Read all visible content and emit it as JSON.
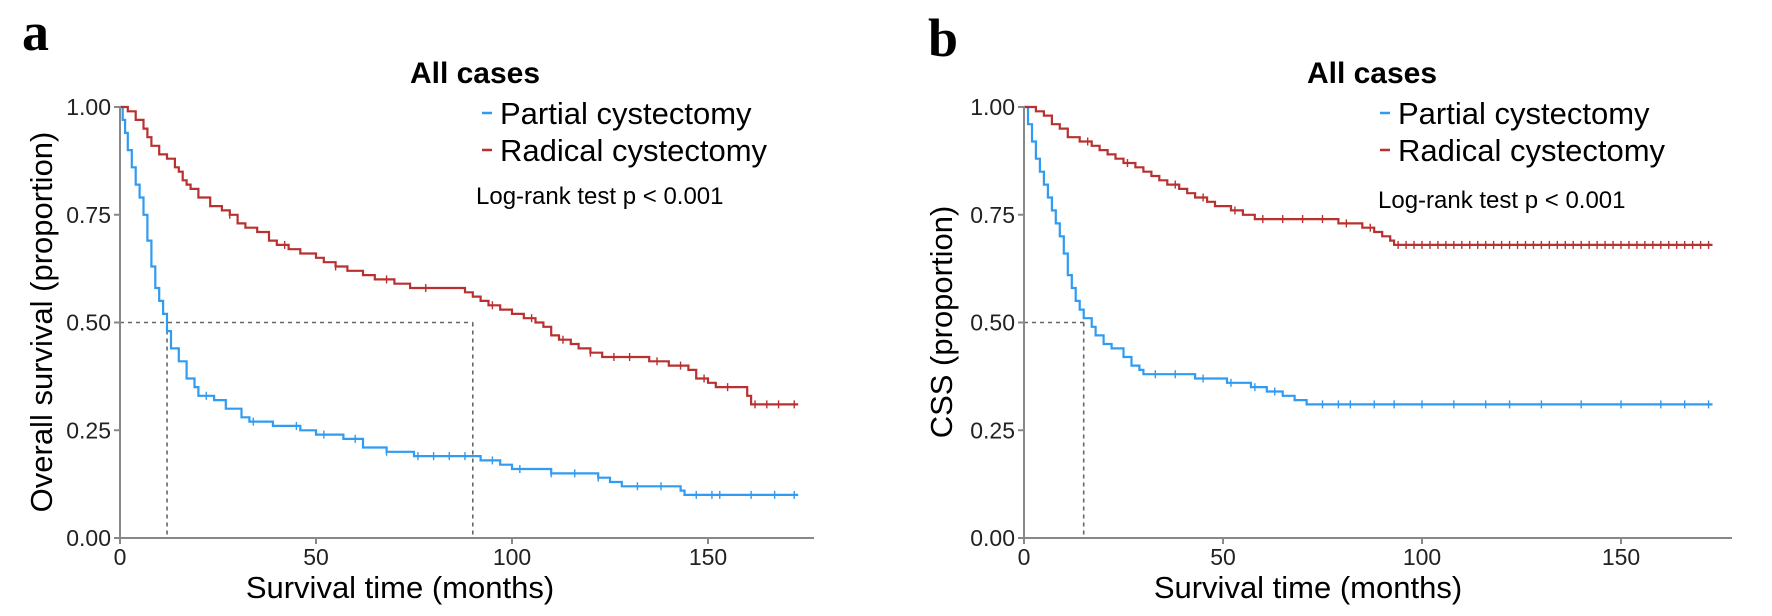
{
  "colors": {
    "partial": "#2f9bf2",
    "radical": "#b8302f"
  },
  "chart_data": [
    {
      "type": "line",
      "panel": "a",
      "title": "All cases",
      "xlabel": "Survival time (months)",
      "ylabel": "Overall survival (proportion)",
      "xlim": [
        0,
        180
      ],
      "ylim": [
        0,
        1
      ],
      "xticks": [
        "0",
        "50",
        "100",
        "150"
      ],
      "yticks": [
        "0.00",
        "0.25",
        "0.50",
        "0.75",
        "1.00"
      ],
      "annotation": "Log-rank test  p < 0.001",
      "legend_position": "top-right",
      "median_lines": [
        12,
        90
      ],
      "series": [
        {
          "name": "Partial cystectomy",
          "color_key": "partial",
          "points": [
            [
              0,
              1.0
            ],
            [
              0.7,
              0.97
            ],
            [
              1.3,
              0.94
            ],
            [
              2,
              0.9
            ],
            [
              3,
              0.86
            ],
            [
              4,
              0.82
            ],
            [
              5,
              0.79
            ],
            [
              6,
              0.75
            ],
            [
              7,
              0.69
            ],
            [
              8,
              0.63
            ],
            [
              9,
              0.58
            ],
            [
              10,
              0.55
            ],
            [
              11,
              0.52
            ],
            [
              12,
              0.48
            ],
            [
              13,
              0.44
            ],
            [
              15,
              0.41
            ],
            [
              17,
              0.37
            ],
            [
              19,
              0.35
            ],
            [
              20,
              0.33
            ],
            [
              24,
              0.32
            ],
            [
              27,
              0.3
            ],
            [
              31,
              0.28
            ],
            [
              33,
              0.27
            ],
            [
              39,
              0.26
            ],
            [
              46,
              0.25
            ],
            [
              50,
              0.24
            ],
            [
              57,
              0.23
            ],
            [
              62,
              0.21
            ],
            [
              68,
              0.2
            ],
            [
              75,
              0.19
            ],
            [
              92,
              0.18
            ],
            [
              97,
              0.17
            ],
            [
              100,
              0.16
            ],
            [
              110,
              0.15
            ],
            [
              122,
              0.14
            ],
            [
              125,
              0.13
            ],
            [
              128,
              0.12
            ],
            [
              143,
              0.11
            ],
            [
              144,
              0.1
            ],
            [
              173,
              0.1
            ]
          ],
          "censors": [
            22,
            34,
            45,
            52,
            60,
            68,
            76,
            80,
            84,
            88,
            95,
            102,
            110,
            116,
            122,
            132,
            138,
            147,
            151,
            153,
            161,
            167,
            172
          ]
        },
        {
          "name": "Radical cystectomy",
          "color_key": "radical",
          "points": [
            [
              0,
              1.0
            ],
            [
              2,
              0.99
            ],
            [
              4,
              0.97
            ],
            [
              6,
              0.95
            ],
            [
              7,
              0.93
            ],
            [
              8,
              0.91
            ],
            [
              10,
              0.89
            ],
            [
              12,
              0.88
            ],
            [
              14,
              0.86
            ],
            [
              15,
              0.85
            ],
            [
              16,
              0.83
            ],
            [
              17,
              0.82
            ],
            [
              18,
              0.81
            ],
            [
              20,
              0.79
            ],
            [
              23,
              0.77
            ],
            [
              26,
              0.76
            ],
            [
              28,
              0.75
            ],
            [
              30,
              0.73
            ],
            [
              32,
              0.72
            ],
            [
              35,
              0.71
            ],
            [
              38,
              0.69
            ],
            [
              40,
              0.68
            ],
            [
              43,
              0.67
            ],
            [
              46,
              0.66
            ],
            [
              50,
              0.65
            ],
            [
              52,
              0.64
            ],
            [
              55,
              0.63
            ],
            [
              58,
              0.62
            ],
            [
              62,
              0.61
            ],
            [
              65,
              0.6
            ],
            [
              70,
              0.59
            ],
            [
              74,
              0.58
            ],
            [
              86,
              0.58
            ],
            [
              88,
              0.57
            ],
            [
              90,
              0.56
            ],
            [
              92,
              0.55
            ],
            [
              94,
              0.54
            ],
            [
              97,
              0.53
            ],
            [
              100,
              0.52
            ],
            [
              103,
              0.51
            ],
            [
              106,
              0.5
            ],
            [
              108,
              0.49
            ],
            [
              110,
              0.47
            ],
            [
              112,
              0.46
            ],
            [
              115,
              0.45
            ],
            [
              117,
              0.44
            ],
            [
              120,
              0.43
            ],
            [
              123,
              0.42
            ],
            [
              133,
              0.42
            ],
            [
              135,
              0.41
            ],
            [
              140,
              0.4
            ],
            [
              145,
              0.39
            ],
            [
              147,
              0.37
            ],
            [
              150,
              0.36
            ],
            [
              152,
              0.35
            ],
            [
              159,
              0.35
            ],
            [
              160,
              0.33
            ],
            [
              161,
              0.31
            ],
            [
              173,
              0.31
            ]
          ],
          "censors": [
            28,
            42,
            55,
            68,
            78,
            95,
            105,
            113,
            120,
            126,
            130,
            137,
            143,
            149,
            155,
            162,
            165,
            168,
            172
          ]
        }
      ]
    },
    {
      "type": "line",
      "panel": "b",
      "title": "All cases",
      "xlabel": "Survival time (months)",
      "ylabel": "CSS (proportion)",
      "xlim": [
        0,
        180
      ],
      "ylim": [
        0,
        1
      ],
      "xticks": [
        "0",
        "50",
        "100",
        "150"
      ],
      "yticks": [
        "0.00",
        "0.25",
        "0.50",
        "0.75",
        "1.00"
      ],
      "annotation": "Log-rank test  p < 0.001",
      "legend_position": "top-right",
      "median_lines": [
        15
      ],
      "series": [
        {
          "name": "Partial cystectomy",
          "color_key": "partial",
          "points": [
            [
              0,
              1.0
            ],
            [
              1,
              0.96
            ],
            [
              2,
              0.92
            ],
            [
              3,
              0.88
            ],
            [
              4,
              0.85
            ],
            [
              5,
              0.82
            ],
            [
              6,
              0.79
            ],
            [
              7,
              0.76
            ],
            [
              8,
              0.73
            ],
            [
              9,
              0.7
            ],
            [
              10,
              0.66
            ],
            [
              11,
              0.61
            ],
            [
              12,
              0.58
            ],
            [
              13,
              0.55
            ],
            [
              14,
              0.53
            ],
            [
              15,
              0.51
            ],
            [
              17,
              0.49
            ],
            [
              18,
              0.47
            ],
            [
              20,
              0.45
            ],
            [
              22,
              0.44
            ],
            [
              25,
              0.42
            ],
            [
              27,
              0.4
            ],
            [
              29,
              0.39
            ],
            [
              30,
              0.38
            ],
            [
              40,
              0.38
            ],
            [
              43,
              0.37
            ],
            [
              51,
              0.36
            ],
            [
              57,
              0.35
            ],
            [
              61,
              0.34
            ],
            [
              65,
              0.33
            ],
            [
              68,
              0.32
            ],
            [
              71,
              0.31
            ],
            [
              173,
              0.31
            ]
          ],
          "censors": [
            33,
            38,
            45,
            52,
            58,
            63,
            75,
            79,
            82,
            88,
            93,
            100,
            108,
            116,
            122,
            130,
            140,
            150,
            160,
            166,
            172
          ]
        },
        {
          "name": "Radical cystectomy",
          "color_key": "radical",
          "points": [
            [
              0,
              1.0
            ],
            [
              3,
              0.99
            ],
            [
              5,
              0.98
            ],
            [
              7,
              0.96
            ],
            [
              9,
              0.95
            ],
            [
              11,
              0.93
            ],
            [
              14,
              0.92
            ],
            [
              17,
              0.91
            ],
            [
              19,
              0.9
            ],
            [
              21,
              0.89
            ],
            [
              23,
              0.88
            ],
            [
              25,
              0.87
            ],
            [
              28,
              0.86
            ],
            [
              30,
              0.85
            ],
            [
              32,
              0.84
            ],
            [
              34,
              0.83
            ],
            [
              36,
              0.82
            ],
            [
              39,
              0.81
            ],
            [
              41,
              0.8
            ],
            [
              43,
              0.79
            ],
            [
              46,
              0.78
            ],
            [
              48,
              0.77
            ],
            [
              52,
              0.76
            ],
            [
              55,
              0.75
            ],
            [
              58,
              0.74
            ],
            [
              77,
              0.74
            ],
            [
              79,
              0.73
            ],
            [
              83,
              0.73
            ],
            [
              85,
              0.72
            ],
            [
              88,
              0.71
            ],
            [
              90,
              0.7
            ],
            [
              92,
              0.69
            ],
            [
              93,
              0.68
            ],
            [
              173,
              0.68
            ]
          ],
          "censors": [
            16,
            26,
            38,
            45,
            53,
            60,
            65,
            70,
            75,
            81,
            87,
            94,
            96,
            98,
            100,
            102,
            104,
            106,
            108,
            110,
            112,
            114,
            116,
            118,
            120,
            122,
            124,
            126,
            128,
            130,
            132,
            134,
            136,
            138,
            140,
            142,
            144,
            146,
            148,
            150,
            152,
            154,
            156,
            158,
            160,
            162,
            164,
            166,
            168,
            170,
            172
          ]
        }
      ]
    }
  ]
}
